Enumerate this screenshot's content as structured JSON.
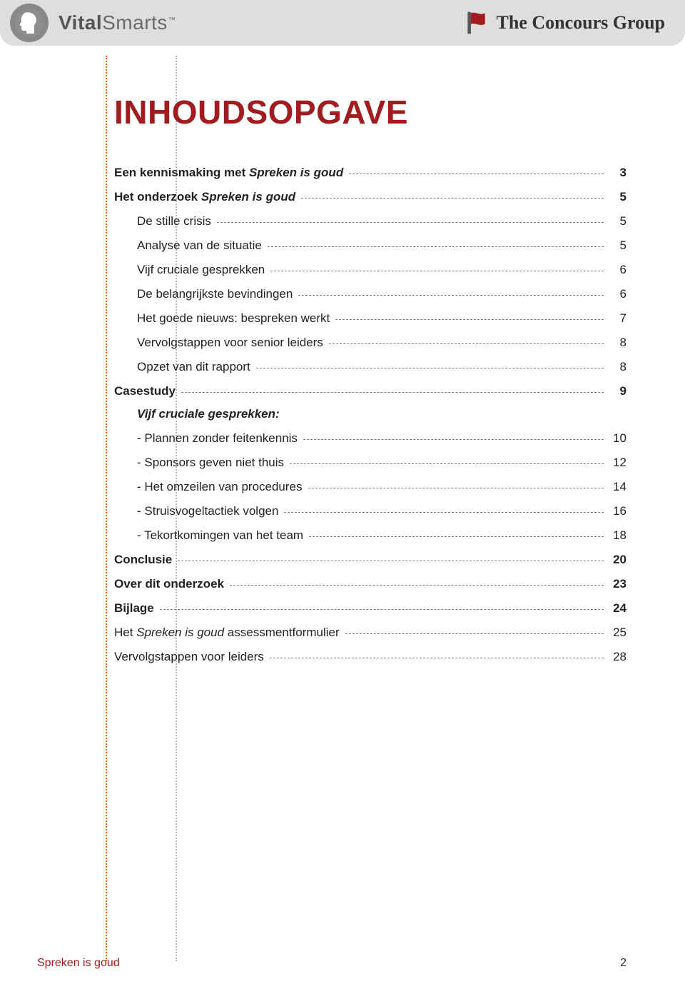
{
  "brands": {
    "left_bold": "Vital",
    "left_light": "Smarts",
    "left_tm": "™",
    "right": "The Concours Group"
  },
  "colors": {
    "page_bg": "#ffffff",
    "header_bg": "#dedede",
    "accent_red": "#a21b1f",
    "dotted_orange": "#e36a1f",
    "dotted_grey": "#b9b9b9",
    "leader": "#7a7a7a",
    "text": "#222222"
  },
  "title": "INHOUDSOPGAVE",
  "toc": {
    "items": [
      {
        "label_pre": "Een kennismaking met ",
        "label_em": "Spreken is goud",
        "label_post": "",
        "page": "3",
        "level": 1,
        "bold": true
      },
      {
        "label_pre": "Het onderzoek ",
        "label_em": "Spreken is goud",
        "label_post": "",
        "page": "5",
        "level": 1,
        "bold": true
      },
      {
        "label": "De stille crisis",
        "page": "5",
        "level": 2
      },
      {
        "label": "Analyse van de situatie",
        "page": "5",
        "level": 2
      },
      {
        "label": "Vijf cruciale gesprekken",
        "page": "6",
        "level": 2
      },
      {
        "label": "De belangrijkste bevindingen",
        "page": "6",
        "level": 2
      },
      {
        "label": "Het goede nieuws: bespreken werkt",
        "page": "7",
        "level": 2
      },
      {
        "label": "Vervolgstappen voor senior leiders",
        "page": "8",
        "level": 2
      },
      {
        "label": "Opzet van dit rapport",
        "page": "8",
        "level": 2
      },
      {
        "label": "Casestudy",
        "page": "9",
        "level": 1,
        "bold": true
      },
      {
        "heading": "Vijf cruciale gesprekken:",
        "level": 1
      },
      {
        "label": "- Plannen zonder feitenkennis",
        "page": "10",
        "level": 2
      },
      {
        "label": "- Sponsors geven niet thuis",
        "page": "12",
        "level": 2
      },
      {
        "label": "- Het omzeilen van procedures",
        "page": "14",
        "level": 2
      },
      {
        "label": "- Struisvogeltactiek volgen",
        "page": "16",
        "level": 2
      },
      {
        "label": "- Tekortkomingen van het team",
        "page": "18",
        "level": 2
      },
      {
        "label": "Conclusie",
        "page": "20",
        "level": 1,
        "bold": true
      },
      {
        "label": "Over dit onderzoek",
        "page": "23",
        "level": 1,
        "bold": true
      },
      {
        "label": "Bijlage",
        "page": "24",
        "level": 1,
        "bold": true
      },
      {
        "label_pre": "Het ",
        "label_em": "Spreken is goud",
        "label_post": " assessmentformulier",
        "page": "25",
        "level": 1
      },
      {
        "label": "Vervolgstappen voor leiders",
        "page": "28",
        "level": 1
      }
    ]
  },
  "footer": {
    "title": "Spreken is goud",
    "page": "2"
  }
}
